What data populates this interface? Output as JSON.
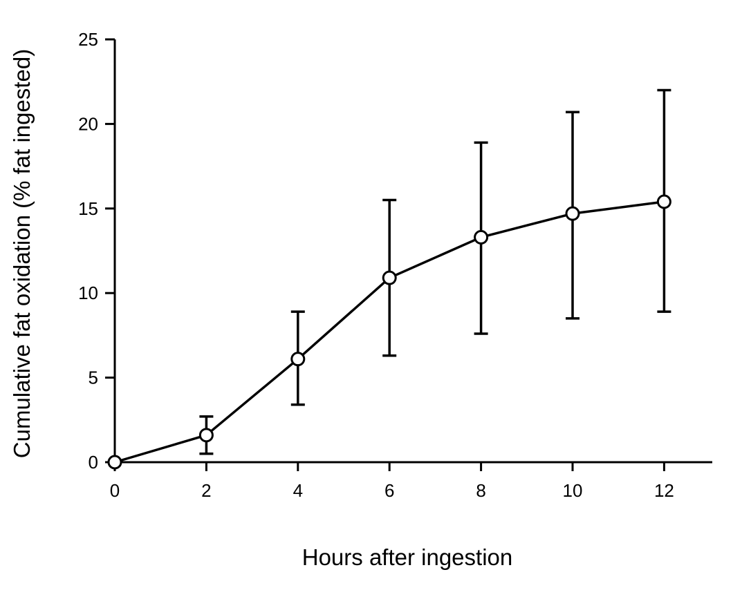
{
  "chart_data": {
    "type": "line",
    "title": "",
    "xlabel": "Hours after ingestion",
    "ylabel": "Cumulative fat oxidation (% fat ingested)",
    "xlim": [
      0,
      13
    ],
    "ylim": [
      0,
      25
    ],
    "x_ticks": [
      0,
      2,
      4,
      6,
      8,
      10,
      12
    ],
    "x_tick_labels": [
      "0",
      "2",
      "4",
      "6",
      "8",
      "10",
      "12"
    ],
    "y_ticks": [
      0,
      5,
      10,
      15,
      20,
      25
    ],
    "y_tick_labels": [
      "0",
      "5",
      "10",
      "15",
      "20",
      "25"
    ],
    "grid": false,
    "legend": "none",
    "series": [
      {
        "x": [
          0,
          2,
          4,
          6,
          8,
          10,
          12
        ],
        "y": [
          0,
          1.6,
          6.1,
          10.9,
          13.3,
          14.7,
          15.4
        ],
        "err_low": [
          0,
          0.5,
          3.4,
          6.3,
          7.6,
          8.5,
          8.9
        ],
        "err_high": [
          0,
          2.7,
          8.9,
          15.5,
          18.9,
          20.7,
          22.0
        ],
        "marker": "open-circle",
        "color": "#000000"
      }
    ]
  }
}
